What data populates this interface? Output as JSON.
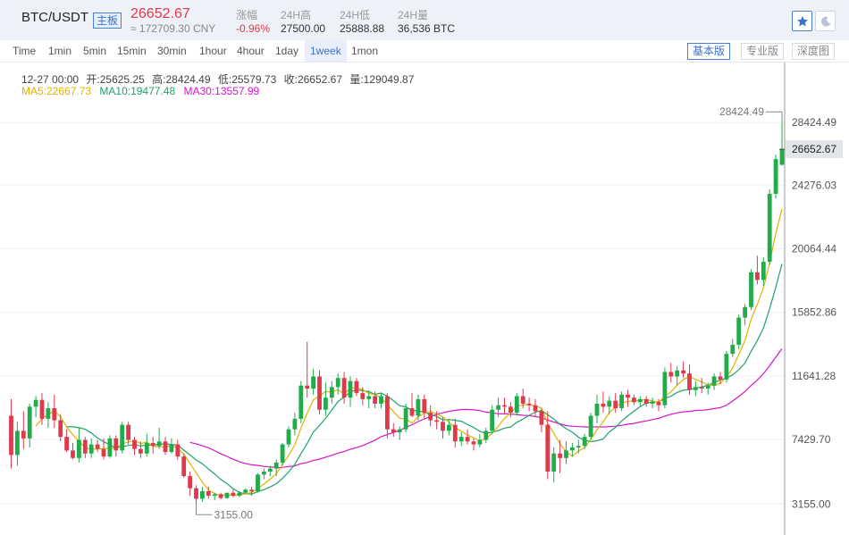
{
  "header": {
    "symbol": "BTC/USDT",
    "board_tag": "主板",
    "price": "26652.67",
    "price_cny": "≈ 172709.30 CNY",
    "stats": [
      {
        "label": "涨幅",
        "value": "-0.96%",
        "tone": "red"
      },
      {
        "label": "24H高",
        "value": "27500.00",
        "tone": "normal"
      },
      {
        "label": "24H低",
        "value": "25888.88",
        "tone": "normal"
      },
      {
        "label": "24H量",
        "value": "36,536 BTC",
        "tone": "normal"
      }
    ],
    "star_icon": "star-icon",
    "theme_icon": "moon-icon"
  },
  "toolbar": {
    "timeframes": [
      "Time",
      "1min",
      "5min",
      "15min",
      "30min",
      "1hour",
      "4hour",
      "1day",
      "1week",
      "1mon"
    ],
    "active_timeframe": "1week",
    "modes": [
      "基本版",
      "专业版",
      "深度图"
    ],
    "active_mode": "基本版"
  },
  "info": {
    "date": "12-27 00:00",
    "open": "开:25625.25",
    "high": "高:28424.49",
    "low": "低:25579.73",
    "close": "收:26652.67",
    "volume": "量:129049.87",
    "ma5": "MA5:22667.73",
    "ma10": "MA10:19477.48",
    "ma30": "MA30:13557.99"
  },
  "colors": {
    "up": "#22ab4a",
    "down": "#e0394b",
    "ma5": "#e6b000",
    "ma10": "#1fa36a",
    "ma30": "#d616c8",
    "accent": "#3c72cf"
  },
  "chart_data": {
    "type": "candlestick",
    "ylim": [
      1100,
      32400
    ],
    "y_ticks": [
      "28424.49",
      "24276.03",
      "20064.44",
      "15852.86",
      "11641.28",
      "7429.70",
      "3155.00"
    ],
    "last_price_label": "26652.67",
    "max_label": "28424.49",
    "min_label": "3155.00",
    "ohlc": [
      [
        9000,
        10100,
        5500,
        6400
      ],
      [
        6400,
        8600,
        5700,
        8000
      ],
      [
        8000,
        9300,
        6800,
        7500
      ],
      [
        7500,
        9800,
        6900,
        9600
      ],
      [
        9600,
        10300,
        8900,
        10050
      ],
      [
        10050,
        10500,
        8400,
        8800
      ],
      [
        8800,
        9900,
        8200,
        9500
      ],
      [
        9500,
        10400,
        8200,
        8700
      ],
      [
        8700,
        9100,
        7300,
        7600
      ],
      [
        7600,
        8100,
        6600,
        6700
      ],
      [
        6700,
        7200,
        6100,
        6200
      ],
      [
        6200,
        8200,
        5900,
        7400
      ],
      [
        7400,
        7600,
        6200,
        6500
      ],
      [
        6500,
        7500,
        6200,
        7100
      ],
      [
        7100,
        7400,
        6600,
        6800
      ],
      [
        6800,
        7500,
        6100,
        6300
      ],
      [
        6300,
        7700,
        6200,
        7500
      ],
      [
        7500,
        7700,
        6300,
        6700
      ],
      [
        6700,
        8600,
        6500,
        8400
      ],
      [
        8400,
        8600,
        7100,
        7400
      ],
      [
        7400,
        7600,
        6400,
        6800
      ],
      [
        6800,
        7300,
        6200,
        6500
      ],
      [
        6500,
        7800,
        6300,
        7200
      ],
      [
        7200,
        7600,
        6500,
        7000
      ],
      [
        7000,
        8200,
        6800,
        7300
      ],
      [
        7300,
        7600,
        6400,
        6600
      ],
      [
        6600,
        7500,
        6500,
        7100
      ],
      [
        7100,
        7400,
        6100,
        6300
      ],
      [
        6300,
        6500,
        4900,
        5000
      ],
      [
        5000,
        5300,
        3700,
        4200
      ],
      [
        4200,
        4400,
        3155,
        3500
      ],
      [
        3500,
        4300,
        3300,
        4000
      ],
      [
        4000,
        4300,
        3500,
        3700
      ],
      [
        3700,
        3900,
        3400,
        3800
      ],
      [
        3800,
        3900,
        3450,
        3550
      ],
      [
        3550,
        3900,
        3500,
        3900
      ],
      [
        3900,
        4100,
        3600,
        3700
      ],
      [
        3700,
        4000,
        3600,
        3900
      ],
      [
        3900,
        4200,
        3800,
        4100
      ],
      [
        4100,
        4300,
        3700,
        4000
      ],
      [
        4000,
        5200,
        3900,
        5100
      ],
      [
        5100,
        5500,
        4800,
        5300
      ],
      [
        5300,
        5700,
        5000,
        5500
      ],
      [
        5500,
        6100,
        5000,
        5900
      ],
      [
        5900,
        7200,
        5700,
        7100
      ],
      [
        7100,
        8300,
        6900,
        8100
      ],
      [
        8100,
        9200,
        7700,
        8800
      ],
      [
        8800,
        11300,
        8500,
        11000
      ],
      [
        11000,
        13900,
        10200,
        10800
      ],
      [
        10800,
        12100,
        10400,
        11600
      ],
      [
        11600,
        12000,
        9100,
        9400
      ],
      [
        9400,
        11200,
        9000,
        10200
      ],
      [
        10200,
        11300,
        9800,
        10900
      ],
      [
        10900,
        11800,
        10400,
        11500
      ],
      [
        11500,
        11900,
        9800,
        10200
      ],
      [
        10200,
        11600,
        9600,
        11300
      ],
      [
        11300,
        11500,
        10300,
        10500
      ],
      [
        10500,
        10900,
        9700,
        10100
      ],
      [
        10100,
        10700,
        9500,
        10300
      ],
      [
        10300,
        10600,
        9500,
        9800
      ],
      [
        9800,
        10500,
        9500,
        10300
      ],
      [
        10300,
        10500,
        7500,
        8100
      ],
      [
        8100,
        8500,
        7600,
        7900
      ],
      [
        7900,
        8300,
        7400,
        8100
      ],
      [
        8100,
        9800,
        7900,
        9500
      ],
      [
        9500,
        10500,
        8900,
        9000
      ],
      [
        9000,
        10400,
        8700,
        10100
      ],
      [
        10100,
        10400,
        8800,
        9200
      ],
      [
        9200,
        9700,
        8300,
        8700
      ],
      [
        8700,
        9300,
        8100,
        8600
      ],
      [
        8600,
        8900,
        7500,
        8000
      ],
      [
        8000,
        8700,
        7700,
        8400
      ],
      [
        8400,
        8800,
        6900,
        7300
      ],
      [
        7300,
        7900,
        7000,
        7600
      ],
      [
        7600,
        8100,
        7100,
        7300
      ],
      [
        7300,
        7500,
        6700,
        7100
      ],
      [
        7100,
        7800,
        6900,
        7400
      ],
      [
        7400,
        8200,
        7200,
        8000
      ],
      [
        8000,
        9700,
        7800,
        9400
      ],
      [
        9400,
        10200,
        8900,
        9700
      ],
      [
        9700,
        10200,
        9100,
        9600
      ],
      [
        9600,
        9900,
        8900,
        9200
      ],
      [
        9200,
        10500,
        9000,
        10300
      ],
      [
        10300,
        10800,
        9500,
        9800
      ],
      [
        9800,
        10200,
        9300,
        9700
      ],
      [
        9700,
        10100,
        8900,
        9300
      ],
      [
        9300,
        9500,
        7900,
        8400
      ],
      [
        8400,
        9300,
        4800,
        5300
      ],
      [
        5300,
        6900,
        4600,
        6500
      ],
      [
        6500,
        7400,
        5200,
        6200
      ],
      [
        6200,
        7300,
        5800,
        6700
      ],
      [
        6700,
        7200,
        6300,
        6900
      ],
      [
        6900,
        7400,
        6500,
        7000
      ],
      [
        7000,
        7800,
        6800,
        7600
      ],
      [
        7600,
        9200,
        7400,
        9000
      ],
      [
        9000,
        10400,
        8500,
        9800
      ],
      [
        9800,
        10600,
        9200,
        9600
      ],
      [
        9600,
        10300,
        9100,
        10000
      ],
      [
        10000,
        10500,
        9200,
        9500
      ],
      [
        9500,
        10600,
        9300,
        10400
      ],
      [
        10400,
        10700,
        9600,
        10200
      ],
      [
        10200,
        10400,
        9700,
        9900
      ],
      [
        9900,
        10300,
        9600,
        10100
      ],
      [
        10100,
        10300,
        9600,
        9800
      ],
      [
        9800,
        10200,
        9500,
        9900
      ],
      [
        9900,
        10100,
        9300,
        9700
      ],
      [
        9700,
        12200,
        9500,
        11900
      ],
      [
        11900,
        12500,
        11200,
        11600
      ],
      [
        11600,
        12300,
        11000,
        12000
      ],
      [
        12000,
        12600,
        11500,
        11800
      ],
      [
        11800,
        12400,
        10400,
        10700
      ],
      [
        10700,
        11300,
        10300,
        10900
      ],
      [
        10900,
        11500,
        10500,
        10800
      ],
      [
        10800,
        11200,
        10400,
        11000
      ],
      [
        11000,
        11800,
        10700,
        11600
      ],
      [
        11600,
        11900,
        11100,
        11400
      ],
      [
        11400,
        13300,
        11200,
        13100
      ],
      [
        13100,
        14100,
        12900,
        13700
      ],
      [
        13700,
        15700,
        13400,
        15500
      ],
      [
        15500,
        16400,
        15000,
        16200
      ],
      [
        16200,
        18700,
        16000,
        18500
      ],
      [
        18500,
        19600,
        17700,
        18000
      ],
      [
        18000,
        19500,
        17600,
        19200
      ],
      [
        19200,
        24000,
        19000,
        23700
      ],
      [
        23700,
        26300,
        23400,
        26000
      ],
      [
        25625.25,
        28424.49,
        25579.73,
        26652.67
      ]
    ]
  }
}
